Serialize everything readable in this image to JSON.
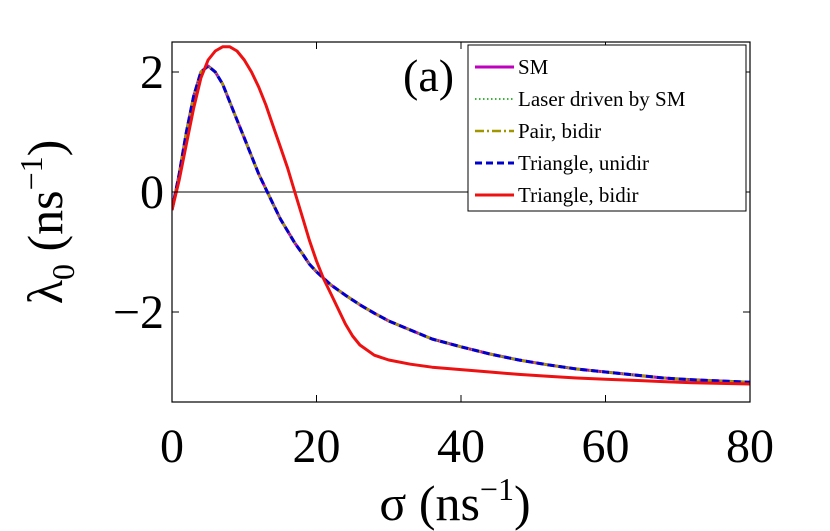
{
  "chart_data": {
    "type": "line",
    "panel_label": "(a)",
    "xlabel": {
      "main": "σ (ns",
      "sup": "−1",
      "close": ")"
    },
    "ylabel": {
      "main": "λ",
      "sub": "0",
      "rest": " (ns",
      "sup": "−1",
      "close": ")"
    },
    "xlim": [
      0,
      80
    ],
    "ylim": [
      -3.5,
      2.5
    ],
    "x_ticks": [
      0,
      20,
      40,
      60,
      80
    ],
    "y_ticks": [
      -2,
      0,
      2
    ],
    "x_tick_labels": [
      "0",
      "20",
      "40",
      "60",
      "80"
    ],
    "y_tick_labels": [
      "−2",
      "0",
      "2"
    ],
    "zero_line": 0,
    "legend_position": "top-right",
    "series": [
      {
        "name": "SM",
        "color": "#BF00BF",
        "dash": "solid",
        "x": [
          0,
          1,
          2,
          3,
          4,
          5,
          6,
          7,
          8,
          9,
          10,
          11,
          12,
          13,
          14,
          15,
          16,
          17,
          18,
          19,
          20,
          22,
          24,
          26,
          28,
          30,
          33,
          36,
          40,
          44,
          48,
          52,
          56,
          60,
          64,
          68,
          72,
          76,
          80
        ],
        "y": [
          -0.3,
          0.3,
          1.0,
          1.6,
          2.0,
          2.1,
          2.0,
          1.8,
          1.5,
          1.2,
          0.9,
          0.6,
          0.3,
          0.05,
          -0.2,
          -0.45,
          -0.65,
          -0.85,
          -1.02,
          -1.2,
          -1.33,
          -1.55,
          -1.72,
          -1.88,
          -2.02,
          -2.15,
          -2.3,
          -2.45,
          -2.58,
          -2.7,
          -2.8,
          -2.88,
          -2.95,
          -3.0,
          -3.05,
          -3.1,
          -3.13,
          -3.15,
          -3.17
        ]
      },
      {
        "name": "Laser driven by SM",
        "color": "#3CB43C",
        "dash": "dotted",
        "x": [
          0,
          1,
          2,
          3,
          4,
          5,
          6,
          7,
          8,
          9,
          10,
          11,
          12,
          13,
          14,
          15,
          16,
          17,
          18,
          19,
          20,
          22,
          24,
          26,
          28,
          30,
          33,
          36,
          40,
          44,
          48,
          52,
          56,
          60,
          64,
          68,
          72,
          76,
          80
        ],
        "y": [
          -0.3,
          0.3,
          1.0,
          1.6,
          2.0,
          2.1,
          2.0,
          1.8,
          1.5,
          1.2,
          0.9,
          0.6,
          0.3,
          0.05,
          -0.2,
          -0.45,
          -0.65,
          -0.85,
          -1.02,
          -1.2,
          -1.33,
          -1.55,
          -1.72,
          -1.88,
          -2.02,
          -2.15,
          -2.3,
          -2.45,
          -2.58,
          -2.7,
          -2.8,
          -2.88,
          -2.95,
          -3.0,
          -3.05,
          -3.1,
          -3.13,
          -3.15,
          -3.17
        ]
      },
      {
        "name": "Pair, bidir",
        "color": "#A09600",
        "dash": "dashdot",
        "x": [
          0,
          1,
          2,
          3,
          4,
          5,
          6,
          7,
          8,
          9,
          10,
          11,
          12,
          13,
          14,
          15,
          16,
          17,
          18,
          19,
          20,
          22,
          24,
          26,
          28,
          30,
          33,
          36,
          40,
          44,
          48,
          52,
          56,
          60,
          64,
          68,
          72,
          76,
          80
        ],
        "y": [
          -0.3,
          0.3,
          1.0,
          1.6,
          2.0,
          2.1,
          2.0,
          1.8,
          1.5,
          1.2,
          0.9,
          0.6,
          0.3,
          0.05,
          -0.2,
          -0.45,
          -0.65,
          -0.85,
          -1.02,
          -1.2,
          -1.33,
          -1.55,
          -1.72,
          -1.88,
          -2.02,
          -2.15,
          -2.3,
          -2.45,
          -2.58,
          -2.7,
          -2.8,
          -2.88,
          -2.95,
          -3.0,
          -3.05,
          -3.1,
          -3.13,
          -3.15,
          -3.17
        ]
      },
      {
        "name": "Triangle, unidir",
        "color": "#0000CC",
        "dash": "dashed",
        "x": [
          0,
          1,
          2,
          3,
          4,
          5,
          6,
          7,
          8,
          9,
          10,
          11,
          12,
          13,
          14,
          15,
          16,
          17,
          18,
          19,
          20,
          22,
          24,
          26,
          28,
          30,
          33,
          36,
          40,
          44,
          48,
          52,
          56,
          60,
          64,
          68,
          72,
          76,
          80
        ],
        "y": [
          -0.3,
          0.3,
          1.0,
          1.6,
          2.0,
          2.1,
          2.0,
          1.8,
          1.5,
          1.2,
          0.9,
          0.6,
          0.3,
          0.05,
          -0.2,
          -0.45,
          -0.65,
          -0.85,
          -1.02,
          -1.2,
          -1.33,
          -1.55,
          -1.72,
          -1.88,
          -2.02,
          -2.15,
          -2.3,
          -2.45,
          -2.58,
          -2.7,
          -2.8,
          -2.88,
          -2.95,
          -3.0,
          -3.05,
          -3.1,
          -3.13,
          -3.15,
          -3.17
        ]
      },
      {
        "name": "Triangle, bidir",
        "color": "#EE1111",
        "dash": "solid",
        "x": [
          0,
          1,
          2,
          3,
          4,
          5,
          6,
          7,
          8,
          9,
          10,
          11,
          12,
          13,
          14,
          15,
          16,
          17,
          18,
          19,
          20,
          21,
          22,
          23,
          24,
          25,
          26,
          28,
          30,
          33,
          36,
          40,
          44,
          48,
          52,
          56,
          60,
          64,
          68,
          72,
          76,
          80
        ],
        "y": [
          -0.3,
          0.2,
          0.8,
          1.4,
          1.9,
          2.2,
          2.35,
          2.42,
          2.42,
          2.35,
          2.2,
          2.0,
          1.75,
          1.45,
          1.1,
          0.75,
          0.4,
          0.0,
          -0.4,
          -0.8,
          -1.15,
          -1.45,
          -1.7,
          -1.95,
          -2.2,
          -2.4,
          -2.55,
          -2.72,
          -2.8,
          -2.87,
          -2.92,
          -2.96,
          -3.0,
          -3.04,
          -3.07,
          -3.1,
          -3.12,
          -3.14,
          -3.16,
          -3.18,
          -3.19,
          -3.2
        ]
      }
    ]
  }
}
